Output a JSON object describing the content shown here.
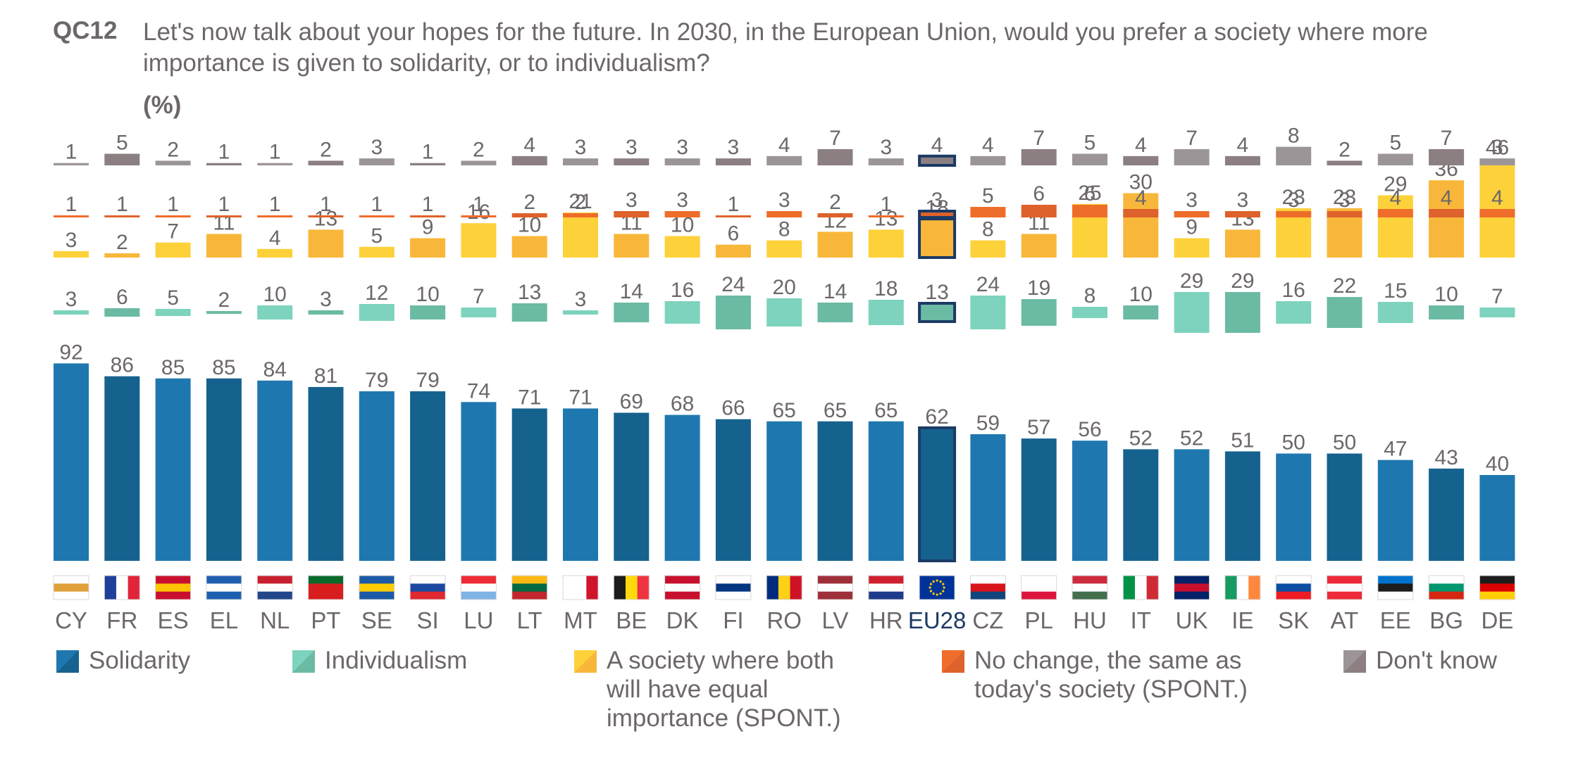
{
  "header": {
    "code": "QC12",
    "question": "Let's now talk about your hopes for the future. In 2030, in the European Union, would you prefer a society where more importance is given to solidarity, or to individualism?",
    "unit": "(%)"
  },
  "colors": {
    "solidarity_light": "#1f77b0",
    "solidarity_dark": "#16628e",
    "individualism_light": "#7dd3bd",
    "individualism_dark": "#6bbaa4",
    "equal_light": "#fdd13a",
    "equal_dark": "#f8b73a",
    "nochange_light": "#ef6d2a",
    "nochange_dark": "#de622b",
    "dontknow_light": "#9c9597",
    "dontknow_dark": "#8b7f82",
    "label": "#6d6768",
    "highlight": "#1b3a64"
  },
  "chart_data": {
    "type": "bar",
    "stacking": "separated-segments",
    "highlight": "EU28",
    "categories": [
      "CY",
      "FR",
      "ES",
      "EL",
      "NL",
      "PT",
      "SE",
      "SI",
      "LU",
      "LT",
      "MT",
      "BE",
      "DK",
      "FI",
      "RO",
      "LV",
      "HR",
      "EU28",
      "CZ",
      "PL",
      "HU",
      "IT",
      "UK",
      "IE",
      "SK",
      "AT",
      "EE",
      "BG",
      "DE"
    ],
    "series": [
      {
        "name": "Solidarity",
        "key": "solidarity",
        "values": [
          92,
          86,
          85,
          85,
          84,
          81,
          79,
          79,
          74,
          71,
          71,
          69,
          68,
          66,
          65,
          65,
          65,
          62,
          59,
          57,
          56,
          52,
          52,
          51,
          50,
          50,
          47,
          43,
          40
        ]
      },
      {
        "name": "Individualism",
        "key": "individualism",
        "values": [
          3,
          6,
          5,
          2,
          10,
          3,
          12,
          10,
          7,
          13,
          3,
          14,
          16,
          24,
          20,
          14,
          18,
          13,
          24,
          19,
          8,
          10,
          29,
          29,
          16,
          22,
          15,
          10,
          7
        ]
      },
      {
        "name": "A society where both will have equal importance (SPONT.)",
        "key": "equal",
        "values": [
          3,
          2,
          7,
          11,
          4,
          13,
          5,
          9,
          16,
          10,
          21,
          11,
          10,
          6,
          8,
          12,
          13,
          18,
          8,
          11,
          25,
          30,
          9,
          13,
          23,
          23,
          29,
          36,
          46
        ]
      },
      {
        "name": "No change, the same as today's society (SPONT.)",
        "key": "nochange",
        "values": [
          1,
          1,
          1,
          1,
          1,
          1,
          1,
          1,
          1,
          2,
          2,
          3,
          3,
          1,
          3,
          2,
          1,
          3,
          5,
          6,
          6,
          4,
          3,
          3,
          3,
          3,
          4,
          4,
          4
        ]
      },
      {
        "name": "Don't know",
        "key": "dontknow",
        "values": [
          1,
          5,
          2,
          1,
          1,
          2,
          3,
          1,
          2,
          4,
          3,
          3,
          3,
          3,
          4,
          7,
          3,
          4,
          4,
          7,
          5,
          4,
          7,
          4,
          8,
          2,
          5,
          7,
          3
        ]
      }
    ]
  },
  "legend": [
    {
      "key": "solidarity",
      "label_lines": [
        "Solidarity"
      ]
    },
    {
      "key": "individualism",
      "label_lines": [
        "Individualism"
      ]
    },
    {
      "key": "equal",
      "label_lines": [
        "A society where both",
        "will have equal",
        "importance (SPONT.)"
      ]
    },
    {
      "key": "nochange",
      "label_lines": [
        "No change, the same as",
        "today's society (SPONT.)"
      ]
    },
    {
      "key": "dontknow",
      "label_lines": [
        "Don't know"
      ]
    }
  ]
}
